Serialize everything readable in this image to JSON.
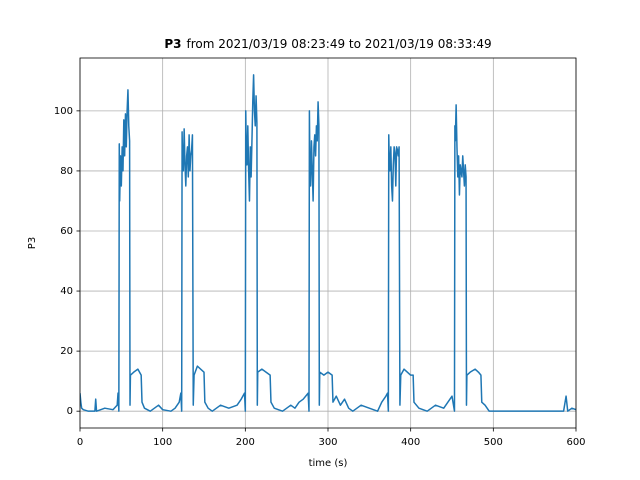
{
  "chart_data": {
    "type": "line",
    "title_bold": "P3",
    "title_rest": "from 2021/03/19 08:23:49 to 2021/03/19 08:33:49",
    "x_label": "time (s)",
    "y_label": "P3",
    "xlim": [
      0,
      600
    ],
    "ylim": [
      -5.6,
      117.6
    ],
    "xticks": [
      0,
      100,
      200,
      300,
      400,
      500,
      600
    ],
    "yticks": [
      0,
      20,
      40,
      60,
      80,
      100
    ],
    "grid": true,
    "series": [
      {
        "color": "#1f77b4",
        "x": [
          0,
          1,
          2,
          4,
          10,
          18,
          19,
          20,
          30,
          40,
          45,
          46,
          47,
          47.5,
          48,
          49,
          50,
          51,
          52,
          53,
          54,
          55,
          56,
          57,
          58,
          59,
          60,
          60.5,
          61,
          65,
          70,
          74,
          75,
          78,
          85,
          95,
          100,
          110,
          115,
          120,
          122,
          123,
          123.5,
          124,
          125,
          126,
          127,
          128,
          129,
          130,
          131,
          132,
          133,
          134,
          135,
          136,
          137,
          138,
          142,
          146,
          150,
          151,
          155,
          160,
          170,
          180,
          190,
          195,
          199,
          200,
          200.5,
          201,
          202,
          203,
          204,
          205,
          206,
          207,
          208,
          209,
          210,
          211,
          212,
          213,
          214,
          214.5,
          215,
          220,
          225,
          230,
          231,
          235,
          245,
          255,
          260,
          265,
          270,
          276,
          277,
          277.5,
          278,
          279,
          280,
          281,
          282,
          283,
          284,
          285,
          286,
          287,
          288,
          289,
          289.5,
          290,
          295,
          300,
          305,
          306,
          310,
          315,
          320,
          325,
          330,
          340,
          350,
          360,
          365,
          370,
          372,
          373,
          373.5,
          374,
          375,
          376,
          377,
          378,
          379,
          380,
          381,
          382,
          383,
          384,
          385,
          386,
          387,
          388,
          392,
          396,
          400,
          403,
          404,
          410,
          420,
          430,
          440,
          445,
          450,
          453,
          453.5,
          454,
          455,
          456,
          457,
          458,
          459,
          460,
          461,
          462,
          463,
          464,
          465,
          466,
          467,
          467.5,
          468,
          472,
          478,
          482,
          485,
          486,
          490,
          495,
          500,
          550,
          585,
          588,
          590,
          595,
          600
        ],
        "values": [
          6,
          3,
          1,
          0.5,
          0,
          0,
          4,
          0,
          1,
          0.5,
          2,
          6,
          0,
          89,
          70,
          85,
          75,
          88,
          80,
          97,
          85,
          99,
          88,
          100,
          107,
          95,
          90,
          2,
          12,
          13,
          14,
          12,
          3,
          1,
          0,
          2,
          0.5,
          0,
          1,
          3,
          6,
          0,
          93,
          85,
          80,
          94,
          82,
          75,
          85,
          88,
          78,
          92,
          80,
          85,
          87,
          92,
          2,
          12,
          15,
          14,
          13,
          3,
          1,
          0,
          2,
          1,
          2,
          4,
          6,
          0,
          100,
          90,
          82,
          95,
          80,
          70,
          88,
          78,
          90,
          103,
          112,
          100,
          95,
          105,
          96,
          2,
          13,
          14,
          13,
          12,
          3,
          1,
          0,
          2,
          1,
          3,
          4,
          6,
          0,
          100,
          85,
          75,
          90,
          80,
          70,
          88,
          92,
          85,
          95,
          90,
          103,
          95,
          2,
          13,
          12,
          13,
          12,
          3,
          5,
          2,
          4,
          1,
          0,
          2,
          1,
          0,
          3,
          5,
          6,
          0,
          92,
          85,
          80,
          88,
          75,
          70,
          82,
          88,
          86,
          75,
          88,
          87,
          85,
          88,
          2,
          12,
          14,
          13,
          12,
          12,
          3,
          1,
          0,
          2,
          1,
          3,
          5,
          0,
          95,
          90,
          102,
          88,
          78,
          85,
          72,
          82,
          80,
          78,
          85,
          80,
          75,
          82,
          78,
          2,
          12,
          13,
          14,
          13,
          12,
          3,
          2,
          0,
          0,
          0,
          0,
          5,
          0,
          1,
          0.5
        ]
      }
    ]
  }
}
